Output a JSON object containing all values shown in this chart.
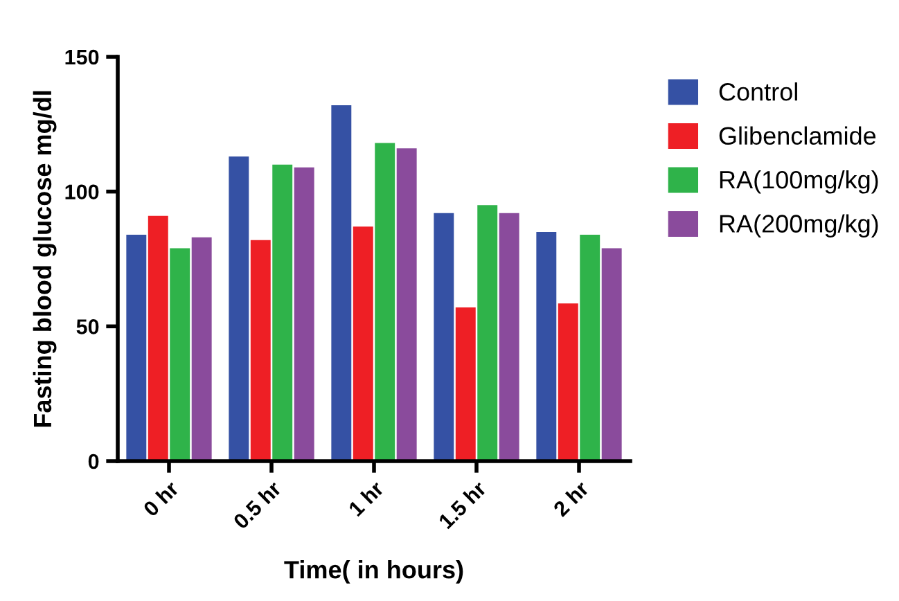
{
  "chart_data": {
    "type": "bar",
    "xlabel": "Time( in hours)",
    "ylabel": "Fasting blood glucose mg/dl",
    "categories": [
      "0 hr",
      "0.5 hr",
      "1 hr",
      "1.5 hr",
      "2 hr"
    ],
    "series": [
      {
        "name": "Control",
        "color": "#3551a4",
        "values": [
          84,
          113,
          132,
          92,
          85
        ]
      },
      {
        "name": "Glibenclamide",
        "color": "#ee1f25",
        "values": [
          91,
          82,
          87,
          57,
          58.5
        ]
      },
      {
        "name": "RA(100mg/kg)",
        "color": "#2fb34a",
        "values": [
          79,
          110,
          118,
          95,
          84
        ]
      },
      {
        "name": "RA(200mg/kg)",
        "color": "#8a4b9c",
        "values": [
          83,
          109,
          116,
          92,
          79
        ]
      }
    ],
    "ylim": [
      0,
      150
    ],
    "yticks": [
      0,
      50,
      100,
      150
    ],
    "grid": false,
    "legend": "right"
  }
}
